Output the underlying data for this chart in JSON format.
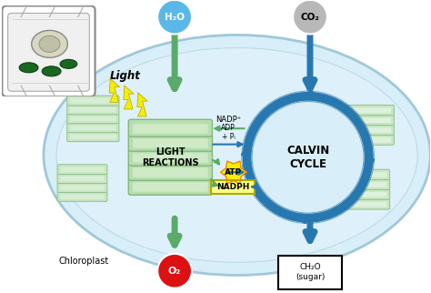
{
  "bg_color": "#ffffff",
  "chloroplast_fill": "#d8eef8",
  "chloroplast_edge": "#a0c8d8",
  "h2o_circle_color": "#5ab8e8",
  "h2o_text": "H₂O",
  "co2_circle_color": "#b8b8b8",
  "co2_text": "CO₂",
  "o2_circle_color": "#dd1111",
  "o2_text": "O₂",
  "ch2o_text": "CH₂O\n(sugar)",
  "green_arrow": "#5aaa6a",
  "blue_arrow": "#2878b0",
  "calvin_circle_color": "#2878b0",
  "lr_fill": "#b8ddb0",
  "lr_edge": "#80b878",
  "light_reactions_text": "LIGHT\nREACTIONS",
  "calvin_cycle_text": "CALVIN\nCYCLE",
  "light_text": "Light",
  "chloroplast_label": "Chloroplast",
  "nadp_text": "NADP⁺",
  "adp_text": "ADP\n+ Pᵢ",
  "atp_text": "ATP",
  "nadph_text": "NADPH",
  "atp_fill": "#ffee00",
  "atp_edge": "#ee8800",
  "nadph_fill": "#ffff88",
  "nadph_edge": "#aaaa00",
  "white": "#ffffff",
  "thylakoid_fill": "#c8e8c0",
  "thylakoid_edge": "#90c090",
  "grana_white": "#e8f4e8"
}
